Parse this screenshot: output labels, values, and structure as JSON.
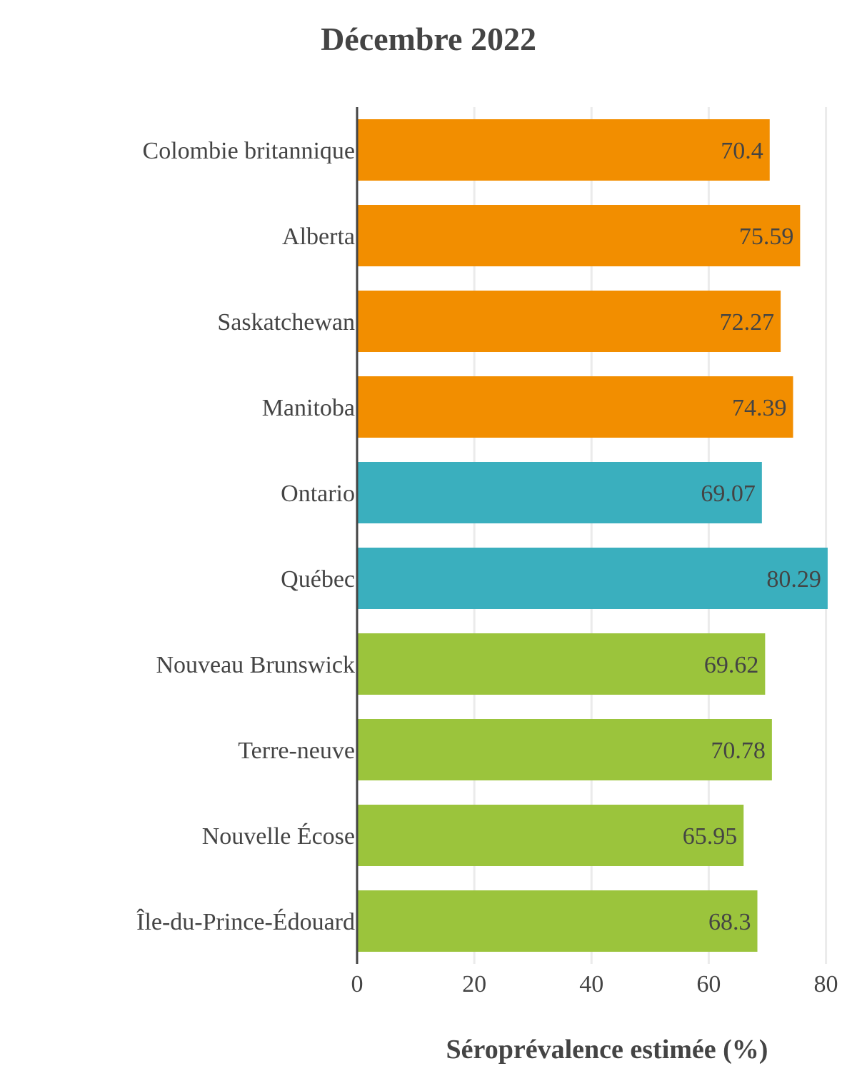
{
  "chart_data": {
    "type": "bar",
    "orientation": "horizontal",
    "title": "Décembre 2022",
    "xlabel": "Séroprévalence estimée (%)",
    "ylabel": "",
    "xlim": [
      0,
      80.3
    ],
    "xticks": [
      0,
      20,
      40,
      60,
      80
    ],
    "grid": true,
    "legend": false,
    "categories": [
      "Colombie britannique",
      "Alberta",
      "Saskatchewan",
      "Manitoba",
      "Ontario",
      "Québec",
      "Nouveau Brunswick",
      "Terre-neuve",
      "Nouvelle Écose",
      "Île-du-Prince-Édouard"
    ],
    "values": [
      70.4,
      75.59,
      72.27,
      74.39,
      69.07,
      80.29,
      69.62,
      70.78,
      65.95,
      68.3
    ],
    "value_labels": [
      "70.4",
      "75.59",
      "72.27",
      "74.39",
      "69.07",
      "80.29",
      "69.62",
      "70.78",
      "65.95",
      "68.3"
    ],
    "bar_colors": [
      "#F28E00",
      "#F28E00",
      "#F28E00",
      "#F28E00",
      "#3AAFBE",
      "#3AAFBE",
      "#9BC43C",
      "#9BC43C",
      "#9BC43C",
      "#9BC43C"
    ],
    "grid_color": "#EBEBEB",
    "axis_color": "#444444",
    "text_color": "#444444"
  }
}
